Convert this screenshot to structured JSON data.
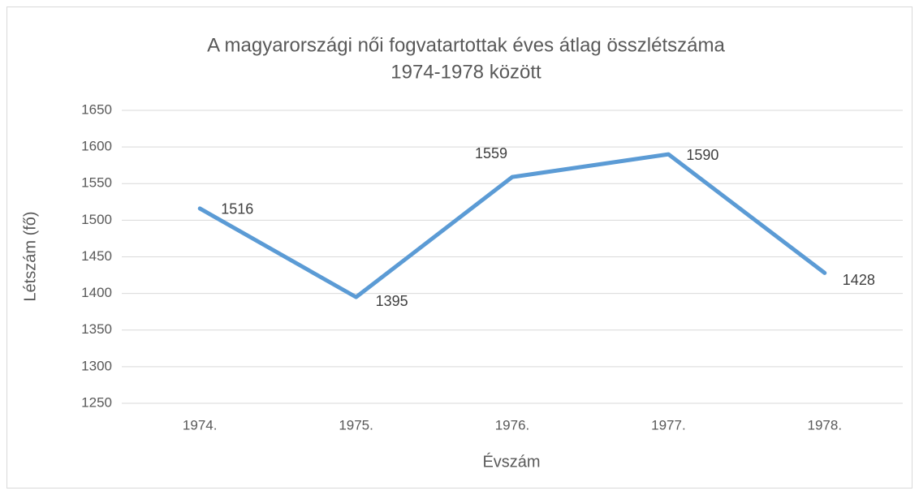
{
  "chart_data": {
    "type": "line",
    "title": [
      "A magyarországi női fogvatartottak éves átlag összlétszáma",
      "1974-1978 között"
    ],
    "x_label": "Évszám",
    "y_label": "Létszám (fő)",
    "categories": [
      "1974.",
      "1975.",
      "1976.",
      "1977.",
      "1978."
    ],
    "series": [
      {
        "name": "Létszám",
        "color": "#5b9bd5",
        "values": [
          1516,
          1395,
          1559,
          1590,
          1428
        ]
      }
    ],
    "ylim": [
      1250,
      1650
    ],
    "yticks": [
      1250,
      1300,
      1350,
      1400,
      1450,
      1500,
      1550,
      1600,
      1650
    ],
    "grid": true,
    "data_labels": true
  }
}
